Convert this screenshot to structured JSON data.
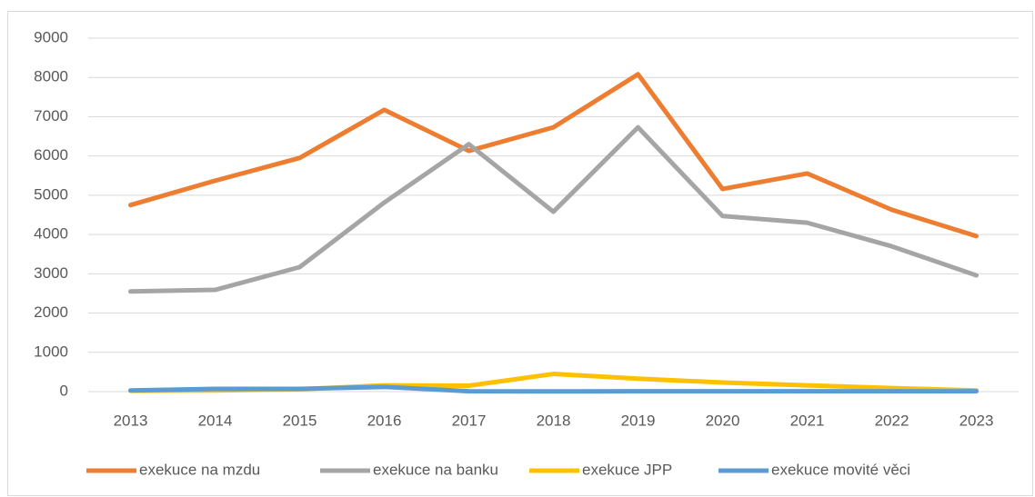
{
  "chart_data": {
    "type": "line",
    "categories": [
      "2013",
      "2014",
      "2015",
      "2016",
      "2017",
      "2018",
      "2019",
      "2020",
      "2021",
      "2022",
      "2023"
    ],
    "series": [
      {
        "name": "exekuce na mzdu",
        "color": "#ED7D31",
        "values": [
          4750,
          5370,
          5950,
          7175,
          6130,
          6730,
          8080,
          5160,
          5555,
          4630,
          3960
        ]
      },
      {
        "name": "exekuce na banku",
        "color": "#A5A5A5",
        "values": [
          2550,
          2590,
          3170,
          4815,
          6300,
          4580,
          6730,
          4470,
          4300,
          3700,
          2960
        ]
      },
      {
        "name": "exekuce JPP",
        "color": "#FFC000",
        "values": [
          20,
          30,
          60,
          160,
          150,
          450,
          330,
          230,
          160,
          90,
          30
        ]
      },
      {
        "name": "exekuce movité věci",
        "color": "#5B9BD5",
        "values": [
          30,
          70,
          70,
          120,
          10,
          5,
          10,
          10,
          10,
          10,
          10
        ]
      }
    ],
    "ylim": [
      0,
      9000
    ],
    "yticks": [
      0,
      1000,
      2000,
      3000,
      4000,
      5000,
      6000,
      7000,
      8000,
      9000
    ],
    "grid": true,
    "legend": "bottom"
  }
}
